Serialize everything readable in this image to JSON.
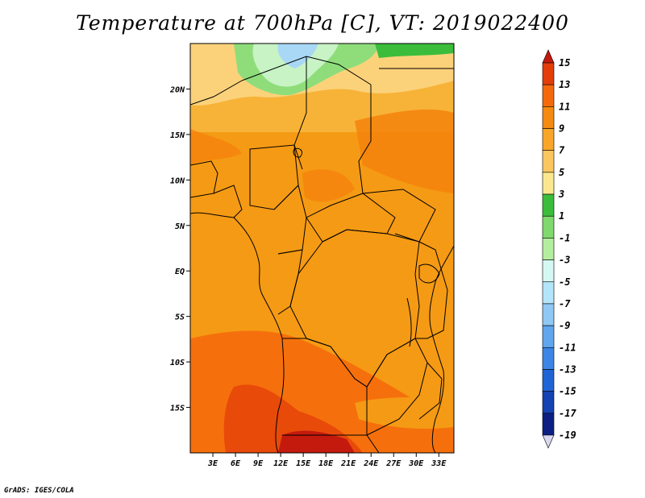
{
  "title": "Temperature at 700hPa [C], VT: 2019022400",
  "credit": "GrADS: IGES/COLA",
  "map": {
    "lon_range": [
      0,
      35
    ],
    "lat_range": [
      -20,
      25
    ],
    "lon_ticks": [
      "3E",
      "6E",
      "9E",
      "12E",
      "15E",
      "18E",
      "21E",
      "24E",
      "27E",
      "30E",
      "33E"
    ],
    "lat_ticks": [
      "20N",
      "15N",
      "10N",
      "5N",
      "EQ",
      "5S",
      "10S",
      "15S"
    ]
  },
  "colorbar": {
    "labels": [
      "15",
      "13",
      "11",
      "9",
      "7",
      "5",
      "3",
      "1",
      "-1",
      "-3",
      "-5",
      "-7",
      "-9",
      "-11",
      "-13",
      "-15",
      "-17",
      "-19"
    ],
    "colors": [
      "#c41a0e",
      "#e33d0a",
      "#f5690c",
      "#f58a10",
      "#f9a52a",
      "#fac75e",
      "#fbe88e",
      "#3bbd3b",
      "#7fd96d",
      "#b3ee9f",
      "#d6f8f3",
      "#b3e5fa",
      "#90c8f5",
      "#5fa6ee",
      "#3b85e6",
      "#1f64d6",
      "#1442b2",
      "#0c2083",
      "#d8d8f0"
    ]
  }
}
